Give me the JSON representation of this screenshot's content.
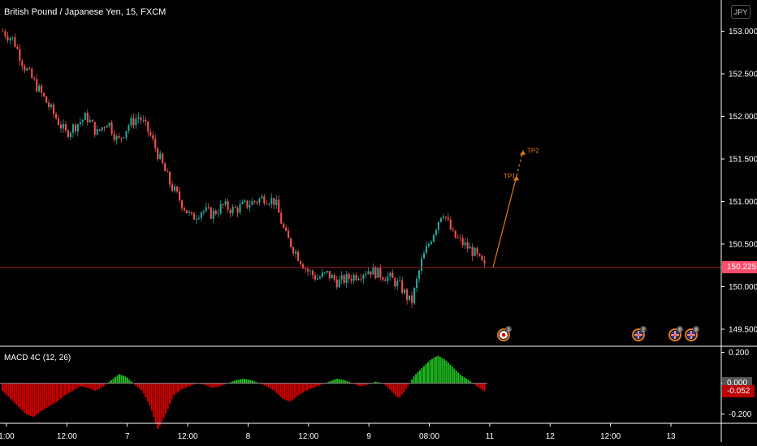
{
  "header": {
    "title": "British Pound / Japanese Yen, 15, FXCM",
    "currency": "JPY"
  },
  "indicator": {
    "title": "MACD 4C (12, 26)"
  },
  "price_tags": {
    "last": "150.225",
    "macd_zero": "0.000",
    "macd_value": "-0.052"
  },
  "colors": {
    "background": "#000000",
    "bull": "#26a69a",
    "bear": "#ef5350",
    "macd_pos": "#1fbf1f",
    "macd_neg": "#d50000",
    "projection": "#e07b1a",
    "last_price": "#ff4d6d"
  },
  "annotations": [
    {
      "label": "TP1",
      "price": 151.3
    },
    {
      "label": "TP2",
      "price": 151.6
    }
  ],
  "events": [
    {
      "id": "ev1",
      "count": "3",
      "flag": "japan"
    },
    {
      "id": "ev2",
      "count": "2",
      "flag": "uk"
    },
    {
      "id": "ev3",
      "count": "6",
      "flag": "uk"
    },
    {
      "id": "ev4",
      "count": "8",
      "flag": "uk"
    }
  ],
  "chart_data": [
    {
      "type": "candlestick",
      "symbol": "GBPJPY",
      "timeframe": "15",
      "y_ticks": [
        149.5,
        150.0,
        150.5,
        151.0,
        151.5,
        152.0,
        152.5,
        153.0
      ],
      "y_tick_labels": [
        "149.500",
        "150.000",
        "150.500",
        "151.000",
        "151.500",
        "152.000",
        "152.500",
        "153.000"
      ],
      "ylim": [
        149.3,
        153.1
      ],
      "x_tick_labels": [
        "1:00",
        "12:00",
        "7",
        "12:00",
        "8",
        "12:00",
        "9",
        "08:00",
        "11",
        "12",
        "12:00",
        "13"
      ],
      "last_price": 150.225,
      "series": [
        {
          "name": "close",
          "values": [
            153.0,
            152.9,
            152.6,
            152.4,
            152.2,
            152.0,
            151.8,
            151.9,
            152.0,
            151.8,
            151.95,
            151.7,
            151.9,
            152.0,
            151.8,
            151.5,
            151.2,
            151.0,
            150.8,
            150.9,
            150.85,
            150.95,
            150.9,
            150.95,
            151.0,
            151.05,
            151.0,
            150.6,
            150.4,
            150.2,
            150.1,
            150.15,
            150.05,
            150.1,
            150.15,
            150.2,
            150.15,
            150.1,
            150.0,
            149.8,
            150.3,
            150.6,
            150.9,
            150.6,
            150.5,
            150.4,
            150.225
          ]
        }
      ]
    },
    {
      "type": "bar",
      "title": "MACD 4C (12, 26)",
      "y_ticks": [
        0.2,
        0.0,
        -0.2
      ],
      "y_tick_labels": [
        "0.200",
        "0.000",
        "-0.200"
      ],
      "ylim": [
        -0.26,
        0.24
      ],
      "series": [
        {
          "values": [
            -0.05,
            -0.1,
            -0.15,
            -0.2,
            -0.22,
            -0.18,
            -0.15,
            -0.12,
            -0.08,
            -0.05,
            -0.02,
            -0.03,
            -0.05,
            -0.02,
            0.02,
            0.06,
            0.04,
            -0.01,
            -0.05,
            -0.15,
            -0.3,
            -0.2,
            -0.08,
            -0.04,
            -0.02,
            0.0,
            -0.01,
            -0.03,
            -0.02,
            0.0,
            0.02,
            0.03,
            0.02,
            0.0,
            -0.02,
            -0.05,
            -0.1,
            -0.12,
            -0.08,
            -0.05,
            -0.03,
            -0.01,
            0.01,
            0.03,
            0.02,
            0.0,
            -0.02,
            -0.01,
            0.01,
            0.0,
            -0.05,
            -0.1,
            -0.03,
            0.05,
            0.1,
            0.15,
            0.18,
            0.15,
            0.1,
            0.05,
            0.02,
            -0.02,
            -0.052
          ]
        }
      ]
    }
  ]
}
